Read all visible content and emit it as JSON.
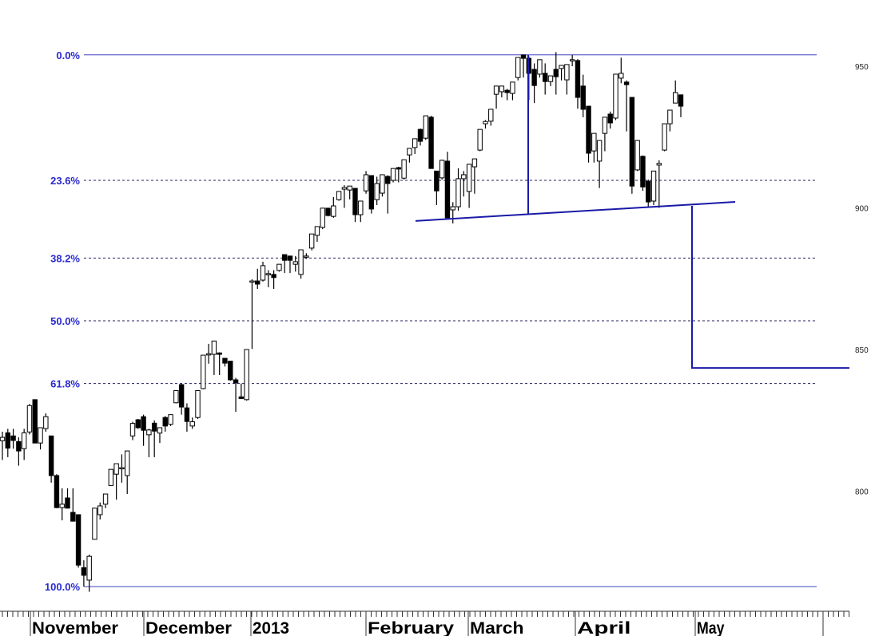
{
  "chart_data": {
    "type": "candlestick",
    "title": "",
    "price_axis": {
      "ticks": [
        800,
        850,
        900,
        950
      ],
      "range": [
        766,
        954
      ]
    },
    "time_axis": {
      "labels": [
        "November",
        "December",
        "2013",
        "February",
        "March",
        "April",
        "May"
      ]
    },
    "fibonacci": {
      "high": 954,
      "low": 766.3,
      "levels": [
        {
          "label": "0.0%",
          "ratio": 0.0
        },
        {
          "label": "23.6%",
          "ratio": 0.236
        },
        {
          "label": "38.2%",
          "ratio": 0.382
        },
        {
          "label": "50.0%",
          "ratio": 0.5
        },
        {
          "label": "61.8%",
          "ratio": 0.618
        },
        {
          "label": "100.0%",
          "ratio": 1.0
        }
      ]
    },
    "annotations": {
      "neckline": {
        "start": 895.4,
        "end": 902.1
      },
      "pattern_height_from": 954,
      "target": 843.5
    },
    "colors": {
      "fib": "#2a2ad0",
      "annotation": "#1a1aa8",
      "up": "#ffffff",
      "down": "#000000"
    },
    "ohlc": [
      [
        817.8,
        821,
        811,
        819
      ],
      [
        820.6,
        822,
        812,
        815.2
      ],
      [
        819.5,
        822,
        815,
        817.9
      ],
      [
        817.5,
        819,
        809,
        814.2
      ],
      [
        815,
        822,
        811,
        820.6
      ],
      [
        820.9,
        830.8,
        820,
        830.2
      ],
      [
        832.3,
        832.3,
        817,
        817
      ],
      [
        817,
        822.4,
        814.7,
        822.4
      ],
      [
        822.1,
        827.5,
        821,
        826.3
      ],
      [
        819.5,
        819.5,
        803,
        805.5
      ],
      [
        805.5,
        806,
        794,
        794.2
      ],
      [
        794.2,
        801,
        789.7,
        795.4
      ],
      [
        797.6,
        801,
        794,
        794
      ],
      [
        792.5,
        801,
        789.4,
        789.4
      ],
      [
        791.7,
        791.7,
        773,
        773.9
      ],
      [
        773,
        775.6,
        766.3,
        770.3
      ],
      [
        768.6,
        777.6,
        764.5,
        777
      ],
      [
        783,
        794,
        783,
        794
      ],
      [
        791.7,
        796,
        790,
        794.8
      ],
      [
        795.4,
        799,
        794,
        799
      ],
      [
        802,
        807.7,
        802,
        807.7
      ],
      [
        806,
        809.7,
        797,
        809.7
      ],
      [
        808,
        813,
        803,
        808.3
      ],
      [
        805.5,
        814.2,
        799,
        814.2
      ],
      [
        819.5,
        824.5,
        818,
        823.9
      ],
      [
        825.2,
        825.5,
        822,
        822.4
      ],
      [
        826.3,
        827,
        816,
        821.5
      ],
      [
        819.9,
        822,
        812,
        821.6
      ],
      [
        824,
        825,
        812,
        821.2
      ],
      [
        820.5,
        822.4,
        817,
        822.4
      ],
      [
        826,
        826.5,
        821,
        823
      ],
      [
        823.6,
        827,
        823,
        827
      ],
      [
        831.2,
        835.5,
        831,
        835.5
      ],
      [
        837.6,
        838,
        827,
        829.7
      ],
      [
        829.4,
        831,
        821,
        824.6
      ],
      [
        823,
        826,
        822,
        824.5
      ],
      [
        826,
        835.5,
        825.5,
        835.5
      ],
      [
        836.2,
        848,
        836,
        848
      ],
      [
        848.3,
        852,
        845,
        848.5
      ],
      [
        848.3,
        853,
        841,
        853
      ],
      [
        848.8,
        849,
        841,
        848.3
      ],
      [
        846.9,
        847,
        844,
        845.2
      ],
      [
        845.9,
        846,
        839,
        839.3
      ],
      [
        839.3,
        840,
        828,
        838.2
      ],
      [
        833.3,
        838,
        832.5,
        832.7
      ],
      [
        832.3,
        850,
        832,
        850
      ],
      [
        873.9,
        874.8,
        850.2,
        874.2
      ],
      [
        874.2,
        878.5,
        871.4,
        873.1
      ],
      [
        874.5,
        881,
        874,
        879.6
      ],
      [
        876.8,
        878,
        872,
        876.8
      ],
      [
        876.5,
        878,
        871.4,
        875.4
      ],
      [
        877.9,
        880.1,
        877.5,
        880.1
      ],
      [
        883.5,
        883.5,
        877,
        881.5
      ],
      [
        883,
        883,
        877,
        881.5
      ],
      [
        880.1,
        883,
        877.5,
        881
      ],
      [
        876.5,
        885.2,
        875,
        885.2
      ],
      [
        883,
        884,
        882,
        883
      ],
      [
        885.8,
        890.8,
        885,
        890.8
      ],
      [
        890.3,
        893.4,
        888,
        893.4
      ],
      [
        893.1,
        899.9,
        892.5,
        899.9
      ],
      [
        899.9,
        900,
        897,
        897.3
      ],
      [
        897,
        903.8,
        896.5,
        900.7
      ],
      [
        902.9,
        905.8,
        902.5,
        905.8
      ],
      [
        906.6,
        908,
        900,
        907.2
      ],
      [
        906.3,
        907.7,
        903,
        907.7
      ],
      [
        906.9,
        906.9,
        895,
        897.6
      ],
      [
        897.6,
        902.4,
        895,
        902.4
      ],
      [
        906,
        913,
        905,
        911.7
      ],
      [
        911.4,
        911.4,
        898,
        899.6
      ],
      [
        902.9,
        911,
        901,
        908.6
      ],
      [
        905.2,
        911.7,
        904,
        911.7
      ],
      [
        911.1,
        911.5,
        898,
        908.6
      ],
      [
        909.7,
        914,
        909,
        913.9
      ],
      [
        914.2,
        914.5,
        909,
        913.7
      ],
      [
        910.5,
        917,
        910,
        917
      ],
      [
        918.7,
        921,
        916,
        921
      ],
      [
        921.3,
        924.4,
        919,
        924.4
      ],
      [
        927.7,
        928,
        922,
        923.5
      ],
      [
        924.6,
        932.5,
        924,
        932.5
      ],
      [
        932,
        932.5,
        913.9,
        913.9
      ],
      [
        913,
        913,
        901,
        906
      ],
      [
        910.6,
        917,
        910,
        916.8
      ],
      [
        916.5,
        919.8,
        896.5,
        896.5
      ],
      [
        899.3,
        902,
        894.5,
        900.4
      ],
      [
        900.4,
        914,
        899,
        910.3
      ],
      [
        910.3,
        913,
        904,
        911.7
      ],
      [
        905.8,
        915.4,
        900,
        915.4
      ],
      [
        914.5,
        917.3,
        905,
        917.3
      ],
      [
        920.4,
        927.7,
        920,
        927.7
      ],
      [
        929.7,
        931,
        928,
        930.5
      ],
      [
        930.6,
        934.8,
        929,
        934.8
      ],
      [
        940.1,
        943,
        935,
        943
      ],
      [
        941,
        943,
        939,
        943
      ],
      [
        941.5,
        942,
        938,
        940.7
      ],
      [
        940.4,
        944.4,
        938,
        944.4
      ],
      [
        946,
        953.1,
        945,
        953.1
      ],
      [
        954,
        954,
        946,
        952.8
      ],
      [
        952.8,
        953.5,
        938,
        947.5
      ],
      [
        948.9,
        951,
        937,
        943.2
      ],
      [
        947.2,
        952.3,
        946,
        952.3
      ],
      [
        947.5,
        951,
        940,
        944.6
      ],
      [
        944.6,
        946.6,
        943,
        946.6
      ],
      [
        948.9,
        955,
        940,
        946.3
      ],
      [
        949.2,
        950.3,
        945,
        950.3
      ],
      [
        945.2,
        950.6,
        940,
        950.6
      ],
      [
        952.3,
        954,
        950,
        952.3
      ],
      [
        952,
        952.5,
        935,
        939
      ],
      [
        943,
        947,
        932,
        934.8
      ],
      [
        935.9,
        936,
        916,
        919.3
      ],
      [
        920.1,
        926.3,
        916,
        926.3
      ],
      [
        916.5,
        923.8,
        907,
        923.8
      ],
      [
        926.3,
        932,
        920,
        932
      ],
      [
        933.1,
        934,
        928,
        930
      ],
      [
        931.7,
        947.2,
        931,
        947.2
      ],
      [
        945.8,
        953,
        944,
        947.5
      ],
      [
        944.4,
        945,
        927,
        943.5
      ],
      [
        939,
        939,
        905,
        907.7
      ],
      [
        913.4,
        924,
        913,
        923.8
      ],
      [
        918.2,
        918.5,
        906,
        907.4
      ],
      [
        909.4,
        910,
        900,
        902.1
      ],
      [
        902.4,
        913,
        901,
        913
      ],
      [
        915.1,
        916.8,
        900,
        915.7
      ],
      [
        920.4,
        929.7,
        920,
        929.7
      ],
      [
        929.7,
        934.5,
        927,
        934.5
      ],
      [
        937,
        945,
        937,
        940.7
      ],
      [
        939.9,
        940,
        932,
        935.9
      ]
    ]
  }
}
